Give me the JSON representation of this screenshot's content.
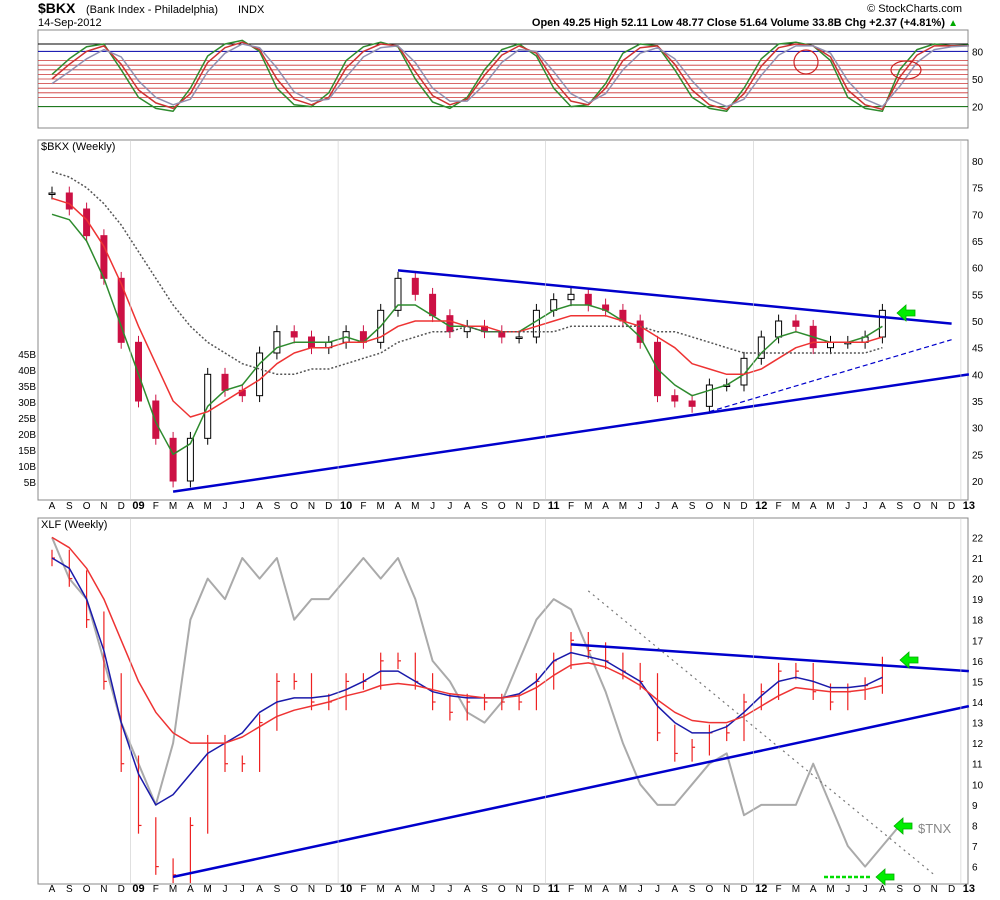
{
  "header": {
    "symbol": "$BKX",
    "name": "(Bank Index - Philadelphia)",
    "exchange": "INDX",
    "date": "14-Sep-2012",
    "watermark": "© StockCharts.com",
    "quote": "Open 49.25  High 52.11  Low 48.77  Close 51.64  Volume 33.8B  Chg +2.37 (+4.81%)",
    "quote_arrow": "▲"
  },
  "x_axis": {
    "labels": [
      "A",
      "S",
      "O",
      "N",
      "D",
      "09",
      "F",
      "M",
      "A",
      "M",
      "J",
      "J",
      "A",
      "S",
      "O",
      "N",
      "D",
      "10",
      "F",
      "M",
      "A",
      "M",
      "J",
      "J",
      "A",
      "S",
      "O",
      "N",
      "D",
      "11",
      "F",
      "M",
      "A",
      "M",
      "J",
      "J",
      "A",
      "S",
      "O",
      "N",
      "D",
      "12",
      "F",
      "M",
      "A",
      "M",
      "J",
      "J",
      "A",
      "S",
      "O",
      "N",
      "D",
      "13"
    ]
  },
  "colors": {
    "up_candle": "#000000",
    "down_candle_bkx": "#cc1144",
    "xlf_bar": "#ee2222",
    "ma_fast": "#2e8b2e",
    "ma_mid": "#ee3333",
    "ma_slow": "#555555",
    "xlf_ma_fast": "#1a1aaa",
    "tnx": "#aaaaaa",
    "trendline": "#0000cc",
    "signal_arrow": "#00ee00",
    "stoch_line": "#2e8b2e",
    "stoch_signal": "#cc3333",
    "stoch_third": "#9090b0"
  },
  "chart_data": [
    {
      "type": "line",
      "panel": "stochastic",
      "y_ticks": [
        20,
        50,
        80
      ],
      "ylim": [
        0,
        100
      ],
      "series": [
        {
          "values": [
            55,
            72,
            85,
            88,
            60,
            30,
            18,
            15,
            40,
            75,
            88,
            92,
            80,
            40,
            22,
            20,
            35,
            70,
            85,
            90,
            85,
            50,
            25,
            18,
            30,
            60,
            82,
            88,
            75,
            40,
            20,
            22,
            45,
            78,
            88,
            86,
            60,
            30,
            18,
            15,
            40,
            72,
            88,
            90,
            86,
            70,
            30,
            18,
            15,
            60,
            82,
            88,
            86,
            87
          ]
        },
        {
          "values": [
            50,
            66,
            80,
            86,
            66,
            38,
            24,
            18,
            34,
            68,
            84,
            90,
            82,
            50,
            28,
            22,
            30,
            62,
            80,
            88,
            86,
            58,
            32,
            22,
            28,
            54,
            76,
            86,
            78,
            48,
            26,
            22,
            40,
            70,
            84,
            86,
            66,
            38,
            22,
            17,
            34,
            64,
            84,
            88,
            86,
            74,
            38,
            22,
            17,
            52,
            76,
            86,
            86,
            86
          ]
        },
        {
          "values": [
            45,
            58,
            72,
            82,
            74,
            48,
            30,
            22,
            28,
            58,
            78,
            88,
            84,
            62,
            36,
            26,
            28,
            52,
            74,
            84,
            86,
            68,
            40,
            26,
            26,
            44,
            68,
            82,
            80,
            58,
            34,
            24,
            34,
            60,
            78,
            84,
            72,
            48,
            28,
            20,
            28,
            54,
            76,
            86,
            86,
            78,
            48,
            28,
            20,
            42,
            68,
            82,
            85,
            86
          ]
        }
      ]
    },
    {
      "type": "line",
      "panel": "$BKX (Weekly)",
      "title": "$BKX (Weekly)",
      "y_ticks": [
        20,
        25,
        30,
        35,
        40,
        45,
        50,
        55,
        60,
        65,
        70,
        75,
        80
      ],
      "ylim": [
        17,
        83
      ],
      "left_volume_ticks": [
        "45B",
        "40B",
        "35B",
        "30B",
        "25B",
        "20B",
        "15B",
        "10B",
        "5B"
      ],
      "x": [
        "A",
        "S",
        "O",
        "N",
        "D",
        "09",
        "F",
        "M",
        "A",
        "M",
        "J",
        "J",
        "A",
        "S",
        "O",
        "N",
        "D",
        "10",
        "F",
        "M",
        "A",
        "M",
        "J",
        "J",
        "A",
        "S",
        "O",
        "N",
        "D",
        "11",
        "F",
        "M",
        "A",
        "M",
        "J",
        "J",
        "A",
        "S",
        "O",
        "N",
        "D",
        "12",
        "F",
        "M",
        "A",
        "M",
        "J",
        "J",
        "A",
        "S",
        "O",
        "N",
        "D",
        "13"
      ],
      "series": [
        {
          "name": "price",
          "values": [
            74,
            71,
            66,
            58,
            46,
            35,
            28,
            20,
            28,
            40,
            37,
            36,
            44,
            48,
            47,
            45,
            46,
            48,
            46,
            52,
            58,
            55,
            51,
            48,
            49,
            48,
            47,
            47,
            52,
            54,
            55,
            53,
            52,
            50,
            46,
            36,
            35,
            34,
            38,
            38,
            43,
            47,
            50,
            49,
            45,
            46,
            46,
            47,
            52,
            null,
            null,
            null,
            null,
            null
          ]
        },
        {
          "name": "MA short",
          "values": [
            70,
            69,
            65,
            58,
            49,
            40,
            31,
            25,
            27,
            34,
            37,
            38,
            42,
            45,
            46,
            46,
            46,
            47,
            46,
            49,
            53,
            53,
            51,
            49,
            49,
            48,
            48,
            48,
            50,
            52,
            53,
            53,
            52,
            50,
            47,
            41,
            38,
            36,
            37,
            38,
            40,
            44,
            47,
            48,
            47,
            46,
            46,
            47,
            49,
            null,
            null,
            null,
            null,
            null
          ]
        },
        {
          "name": "MA medium",
          "values": [
            73,
            72,
            69,
            64,
            57,
            49,
            42,
            35,
            32,
            33,
            35,
            37,
            39,
            42,
            44,
            45,
            45,
            46,
            46,
            47,
            49,
            50,
            50,
            50,
            49,
            49,
            48,
            48,
            49,
            50,
            51,
            51,
            51,
            50,
            49,
            47,
            45,
            42,
            41,
            40,
            40,
            41,
            43,
            45,
            46,
            46,
            46,
            46,
            47,
            null,
            null,
            null,
            null,
            null
          ]
        },
        {
          "name": "MA long",
          "values": [
            78,
            77,
            75,
            72,
            68,
            63,
            58,
            53,
            49,
            46,
            44,
            42,
            41,
            40,
            40,
            41,
            41,
            42,
            43,
            44,
            46,
            47,
            48,
            48,
            49,
            48,
            48,
            48,
            48,
            48,
            49,
            49,
            49,
            49,
            49,
            48,
            48,
            47,
            46,
            45,
            44,
            44,
            44,
            44,
            44,
            44,
            44,
            44,
            45,
            null,
            null,
            null,
            null,
            null
          ]
        }
      ],
      "trendlines": [
        {
          "from": [
            "Apr-10",
            59.5
          ],
          "to": [
            "Dec-12",
            49.5
          ]
        },
        {
          "from": [
            "Mar-09",
            18
          ],
          "to": [
            "Jan-13",
            40
          ]
        },
        {
          "from": [
            "Oct-11",
            33
          ],
          "to": [
            "Dec-12",
            46.5
          ]
        }
      ]
    },
    {
      "type": "line",
      "panel": "XLF (Weekly)",
      "title": "XLF (Weekly)",
      "y_ticks": [
        6,
        7,
        8,
        9,
        10,
        11,
        12,
        13,
        14,
        15,
        16,
        17,
        18,
        19,
        20,
        21,
        22
      ],
      "ylim": [
        5.3,
        22.7
      ],
      "overlay_label": "$TNX",
      "series": [
        {
          "name": "XLF",
          "values": [
            21,
            20,
            18,
            15,
            11,
            8,
            6,
            5.6,
            8,
            12,
            11,
            11,
            13,
            15,
            15,
            14,
            14,
            15,
            15,
            16,
            16,
            15,
            14,
            13.5,
            14,
            14,
            14,
            14,
            15,
            16,
            17,
            16.5,
            16,
            15.5,
            15,
            12.5,
            11.5,
            11.8,
            12.5,
            12.5,
            14,
            14.5,
            15.5,
            15.5,
            14.5,
            14,
            14.5,
            14.8,
            15.8,
            null,
            null,
            null,
            null,
            null
          ]
        },
        {
          "name": "MA short",
          "values": [
            21,
            20.5,
            19,
            16.5,
            13,
            10.5,
            9,
            9.5,
            10.5,
            11.5,
            12,
            12.5,
            13.5,
            14,
            14.2,
            14.2,
            14.3,
            14.6,
            15,
            15.5,
            15.5,
            15,
            14.5,
            14.3,
            14.2,
            14.2,
            14.2,
            14.4,
            15,
            16,
            16.4,
            16.2,
            16,
            15.5,
            15,
            13.8,
            13,
            12.5,
            12.5,
            12.8,
            13.5,
            14.3,
            15,
            15.2,
            15,
            14.7,
            14.7,
            14.8,
            15.2,
            null,
            null,
            null,
            null,
            null
          ]
        },
        {
          "name": "MA long",
          "values": [
            22,
            21.5,
            20.5,
            19,
            17,
            15,
            13.5,
            12.5,
            12,
            12,
            12,
            12.3,
            12.8,
            13.3,
            13.6,
            13.8,
            14,
            14.3,
            14.5,
            14.8,
            14.9,
            14.8,
            14.6,
            14.4,
            14.3,
            14.2,
            14.2,
            14.3,
            14.7,
            15.3,
            15.8,
            15.9,
            15.7,
            15.3,
            14.8,
            14.1,
            13.5,
            13.1,
            13,
            13,
            13.3,
            13.8,
            14.3,
            14.7,
            14.6,
            14.5,
            14.5,
            14.6,
            14.8,
            null,
            null,
            null,
            null,
            null
          ]
        },
        {
          "name": "$TNX",
          "values": [
            22,
            20,
            19,
            16,
            13,
            11,
            9,
            12,
            18,
            20,
            19,
            21,
            20,
            21,
            18,
            19,
            19,
            20,
            21,
            20,
            21,
            19,
            16,
            15,
            13.5,
            13,
            14,
            16,
            18,
            19,
            18.5,
            16.5,
            14.5,
            12,
            10,
            9,
            9,
            10,
            11,
            11.5,
            8.5,
            9,
            9,
            9,
            11,
            9,
            7,
            6,
            7,
            8,
            null,
            null,
            null,
            null
          ]
        }
      ],
      "trendlines": [
        {
          "from": [
            "Feb-11",
            16.8
          ],
          "to": [
            "Jan-13",
            15.5
          ]
        },
        {
          "from": [
            "Mar-09",
            5.5
          ],
          "to": [
            "Jan-13",
            13.8
          ]
        },
        {
          "from": [
            "Mar-11",
            19.4
          ],
          "to": [
            "Nov-12",
            5.6
          ]
        }
      ]
    }
  ]
}
